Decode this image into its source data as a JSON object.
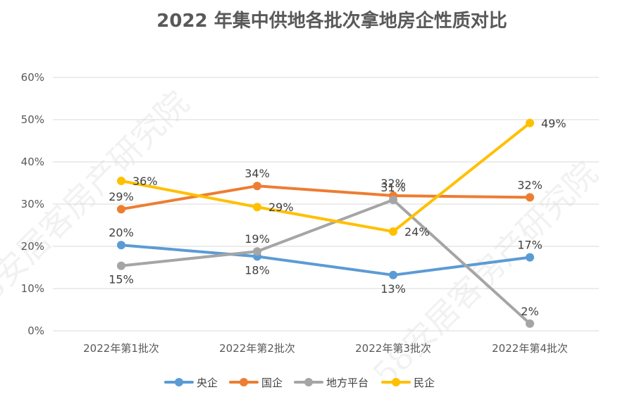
{
  "chart_data": {
    "type": "line",
    "title": "2022 年集中供地各批次拿地房企性质对比",
    "categories": [
      "2022年第1批次",
      "2022年第2批次",
      "2022年第3批次",
      "2022年第4批次"
    ],
    "ylim": [
      0,
      0.6
    ],
    "yticks": [
      0,
      0.1,
      0.2,
      0.3,
      0.4,
      0.5,
      0.6
    ],
    "ytick_labels": [
      "0%",
      "10%",
      "20%",
      "30%",
      "40%",
      "50%",
      "60%"
    ],
    "grid": true,
    "legend_position": "bottom",
    "series": [
      {
        "name": "央企",
        "color": "#5b9bd5",
        "values": [
          0.203,
          0.176,
          0.132,
          0.174
        ],
        "labels": [
          "20%",
          "18%",
          "13%",
          "17%"
        ],
        "label_pos": [
          "above",
          "below",
          "below",
          "above"
        ]
      },
      {
        "name": "国企",
        "color": "#ed7d31",
        "values": [
          0.288,
          0.343,
          0.32,
          0.316
        ],
        "labels": [
          "29%",
          "34%",
          "32%",
          "32%"
        ],
        "label_pos": [
          "above",
          "above",
          "above",
          "above"
        ]
      },
      {
        "name": "地方平台",
        "color": "#a5a5a5",
        "values": [
          0.154,
          0.188,
          0.31,
          0.017
        ],
        "labels": [
          "15%",
          "19%",
          "31%",
          "2%"
        ],
        "label_pos": [
          "below",
          "above",
          "above",
          "above"
        ]
      },
      {
        "name": "民企",
        "color": "#ffc000",
        "values": [
          0.355,
          0.293,
          0.235,
          0.492
        ],
        "labels": [
          "36%",
          "29%",
          "24%",
          "49%"
        ],
        "label_pos": [
          "right",
          "right",
          "right",
          "right"
        ]
      }
    ]
  },
  "watermark": [
    "58安居客房产研究院",
    "58安居客房产研究院"
  ]
}
